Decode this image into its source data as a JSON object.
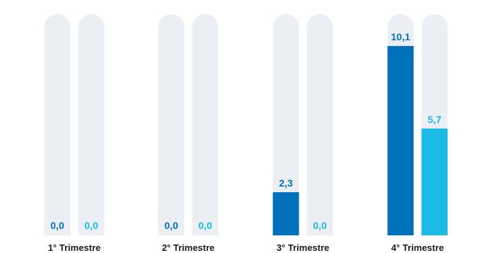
{
  "chart_data": {
    "type": "bar",
    "categories": [
      "1° Trimestre",
      "2° Trimestre",
      "3° Trimestre",
      "4° Trimestre"
    ],
    "series": [
      {
        "values": [
          0.0,
          0.0,
          2.3,
          10.1
        ],
        "labels": [
          "0,0",
          "0,0",
          "2,3",
          "10,1"
        ],
        "color": "#0271bb"
      },
      {
        "values": [
          0.0,
          0.0,
          0.0,
          5.7
        ],
        "labels": [
          "0,0",
          "0,0",
          "0,0",
          "5,7"
        ],
        "color": "#1bbbe6"
      }
    ],
    "ylim": [
      0,
      11.8
    ],
    "track_color": "#ebeff4",
    "grid": false,
    "legend": "none"
  }
}
